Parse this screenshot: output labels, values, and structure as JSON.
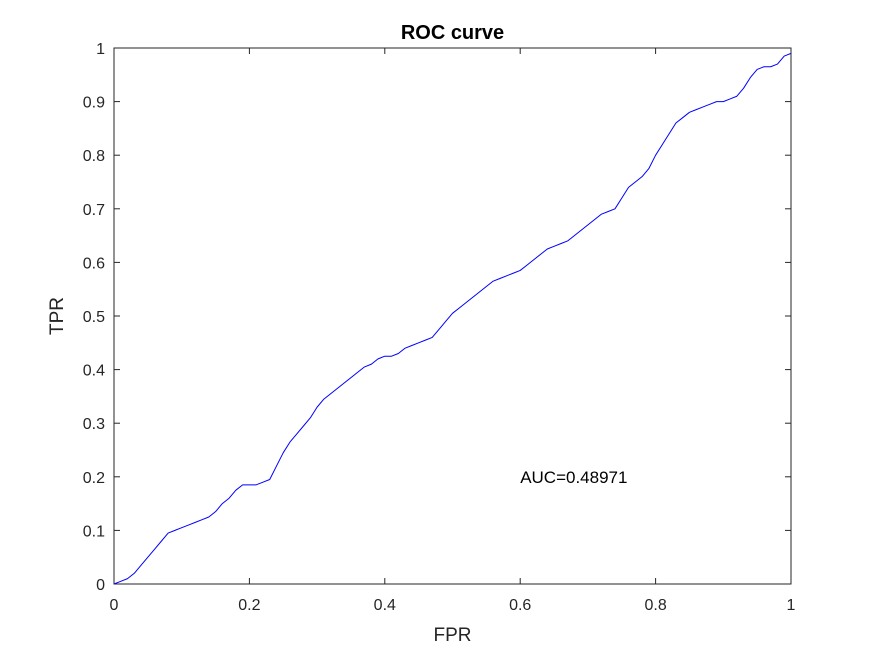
{
  "chart_data": {
    "type": "line",
    "title": "ROC curve",
    "xlabel": "FPR",
    "ylabel": "TPR",
    "xlim": [
      0,
      1
    ],
    "ylim": [
      0,
      1
    ],
    "grid": false,
    "x_ticks": [
      0,
      0.2,
      0.4,
      0.6,
      0.8,
      1
    ],
    "x_tick_labels": [
      "0",
      "0.2",
      "0.4",
      "0.6",
      "0.8",
      "1"
    ],
    "y_ticks": [
      0,
      0.1,
      0.2,
      0.3,
      0.4,
      0.5,
      0.6,
      0.7,
      0.8,
      0.9,
      1
    ],
    "y_tick_labels": [
      "0",
      "0.1",
      "0.2",
      "0.3",
      "0.4",
      "0.5",
      "0.6",
      "0.7",
      "0.8",
      "0.9",
      "1"
    ],
    "annotation": {
      "text": "AUC=0.48971",
      "x": 0.6,
      "y": 0.2
    },
    "series": [
      {
        "color": "#0000ff",
        "x": [
          0,
          0.01,
          0.02,
          0.03,
          0.04,
          0.05,
          0.06,
          0.07,
          0.08,
          0.09,
          0.1,
          0.11,
          0.12,
          0.13,
          0.14,
          0.15,
          0.16,
          0.17,
          0.18,
          0.19,
          0.2,
          0.21,
          0.22,
          0.23,
          0.24,
          0.25,
          0.26,
          0.27,
          0.28,
          0.29,
          0.3,
          0.31,
          0.32,
          0.33,
          0.34,
          0.35,
          0.36,
          0.37,
          0.38,
          0.39,
          0.4,
          0.41,
          0.42,
          0.43,
          0.44,
          0.45,
          0.46,
          0.47,
          0.48,
          0.49,
          0.5,
          0.51,
          0.52,
          0.53,
          0.54,
          0.55,
          0.56,
          0.57,
          0.58,
          0.59,
          0.6,
          0.61,
          0.62,
          0.63,
          0.64,
          0.65,
          0.66,
          0.67,
          0.68,
          0.69,
          0.7,
          0.71,
          0.72,
          0.73,
          0.74,
          0.75,
          0.76,
          0.77,
          0.78,
          0.79,
          0.8,
          0.81,
          0.82,
          0.83,
          0.84,
          0.85,
          0.86,
          0.87,
          0.88,
          0.89,
          0.9,
          0.91,
          0.92,
          0.93,
          0.94,
          0.95,
          0.96,
          0.97,
          0.98,
          0.99,
          1
        ],
        "y": [
          0,
          0.005,
          0.01,
          0.02,
          0.035,
          0.05,
          0.065,
          0.08,
          0.095,
          0.1,
          0.105,
          0.11,
          0.115,
          0.12,
          0.125,
          0.135,
          0.15,
          0.16,
          0.175,
          0.185,
          0.185,
          0.185,
          0.19,
          0.195,
          0.22,
          0.245,
          0.265,
          0.28,
          0.295,
          0.31,
          0.33,
          0.345,
          0.355,
          0.365,
          0.375,
          0.385,
          0.395,
          0.405,
          0.41,
          0.42,
          0.425,
          0.425,
          0.43,
          0.44,
          0.445,
          0.45,
          0.455,
          0.46,
          0.475,
          0.49,
          0.505,
          0.515,
          0.525,
          0.535,
          0.545,
          0.555,
          0.565,
          0.57,
          0.575,
          0.58,
          0.585,
          0.595,
          0.605,
          0.615,
          0.625,
          0.63,
          0.635,
          0.64,
          0.65,
          0.66,
          0.67,
          0.68,
          0.69,
          0.695,
          0.7,
          0.72,
          0.74,
          0.75,
          0.76,
          0.775,
          0.8,
          0.82,
          0.84,
          0.86,
          0.87,
          0.88,
          0.885,
          0.89,
          0.895,
          0.9,
          0.9,
          0.905,
          0.91,
          0.925,
          0.945,
          0.96,
          0.965,
          0.965,
          0.97,
          0.985,
          0.99
        ]
      }
    ]
  }
}
